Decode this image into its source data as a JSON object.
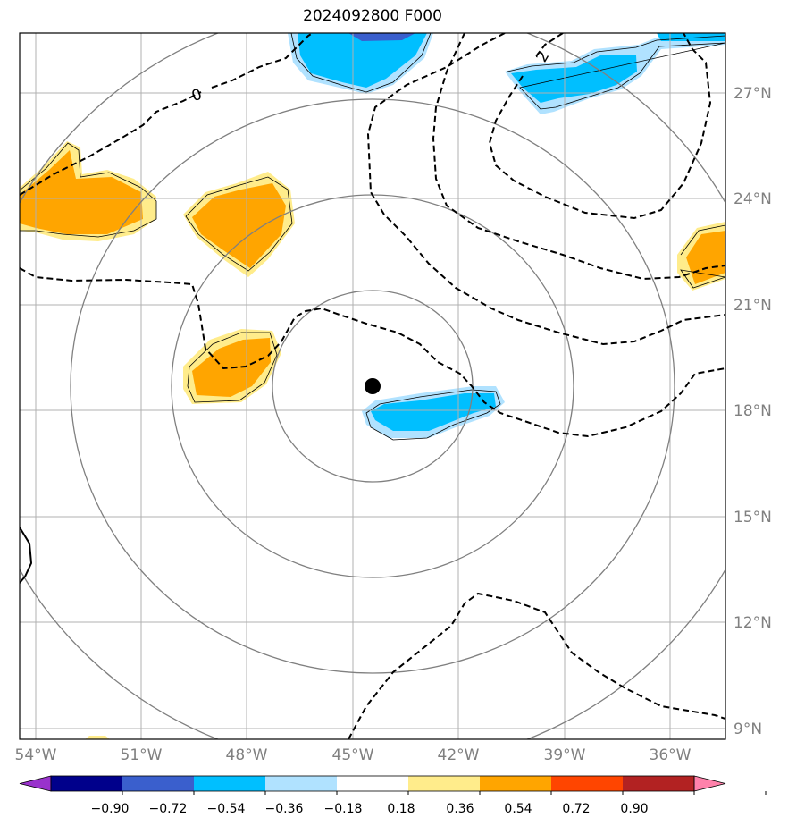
{
  "title": "2024092800 F000",
  "lon_labels": [
    "54°W",
    "51°W",
    "48°W",
    "45°W",
    "42°W",
    "39°W",
    "36°W"
  ],
  "lat_labels": [
    "27°N",
    "24°N",
    "21°N",
    "18°N",
    "15°N",
    "12°N",
    "9°N"
  ],
  "contour_labels": [
    "0",
    "2"
  ],
  "colorbar_ticks": [
    "−0.90",
    "−0.72",
    "−0.54",
    "−0.36",
    "−0.18",
    "0.18",
    "0.36",
    "0.54",
    "0.72",
    "0.90"
  ],
  "colorbar_colors": [
    "#9932cc",
    "#00008b",
    "#3a5fcd",
    "#00bfff",
    "#b0e2ff",
    "#ffffff",
    "#ffec8b",
    "#ffa500",
    "#ff4500",
    "#b22222",
    "#ff82ab"
  ],
  "storm_center": {
    "lon": "44.5°W",
    "lat": "18.6°N"
  }
}
